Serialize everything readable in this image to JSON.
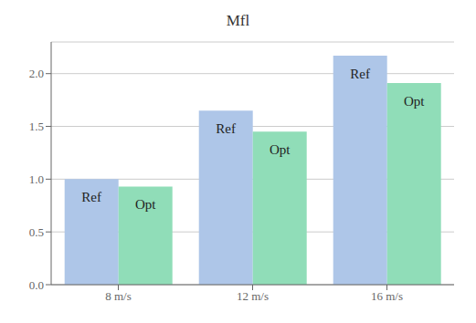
{
  "chart_data": {
    "type": "bar",
    "title": "Mfl",
    "categories": [
      "8 m/s",
      "12 m/s",
      "16 m/s"
    ],
    "series": [
      {
        "name": "Ref",
        "color": "#aec6e8",
        "values": [
          1.0,
          1.65,
          2.17
        ]
      },
      {
        "name": "Opt",
        "color": "#90ddb8",
        "values": [
          0.93,
          1.45,
          1.91
        ]
      }
    ],
    "ylim": [
      0.0,
      2.3
    ],
    "yticks": [
      {
        "value": 0.0,
        "label": "0.0"
      },
      0.5,
      {
        "value": 1.0,
        "label": "1.0"
      },
      1.5,
      {
        "value": 2.0,
        "label": "2.0"
      }
    ],
    "grid": true
  }
}
